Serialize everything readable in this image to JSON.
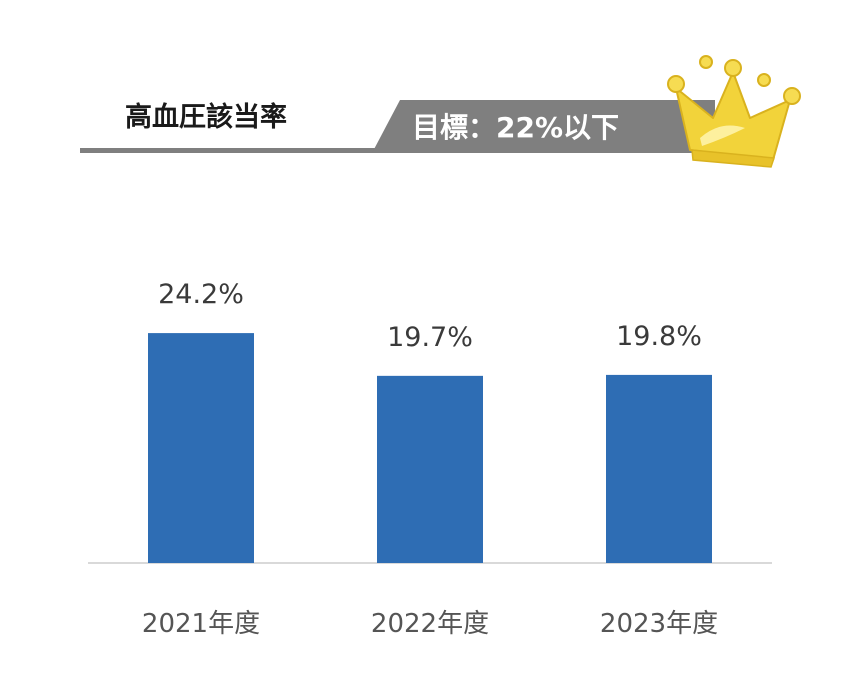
{
  "header": {
    "title": "高血圧該当率",
    "target": "目標：22%以下"
  },
  "icons": {
    "badge": "crown-icon"
  },
  "colors": {
    "bar": "#2E6DB4",
    "title_rule": "#7f7f7f",
    "target_banner": "#7f7f7f",
    "crown_gold": "#F2D33A"
  },
  "chart_data": {
    "type": "bar",
    "categories": [
      "2021年度",
      "2022年度",
      "2023年度"
    ],
    "values": [
      24.2,
      19.7,
      19.8
    ],
    "value_labels": [
      "24.2%",
      "19.7%",
      "19.8%"
    ],
    "title": "高血圧該当率",
    "annotation": "目標：22%以下",
    "xlabel": "",
    "ylabel": "",
    "unit": "%",
    "ylim": [
      0,
      30
    ],
    "grid": false,
    "legend": "none"
  }
}
